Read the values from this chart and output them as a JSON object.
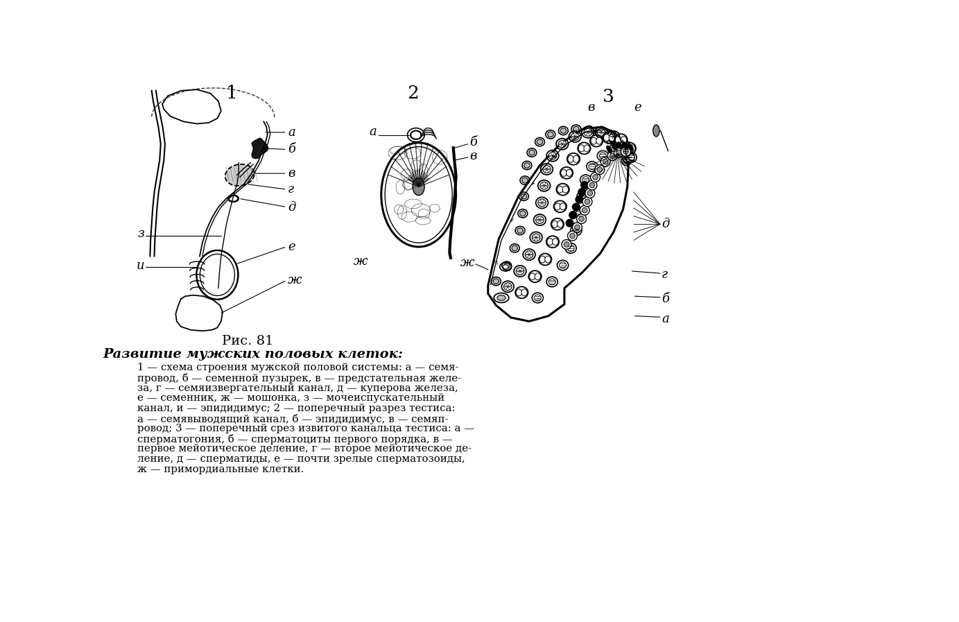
{
  "title": "Рис. 81",
  "caption_bold": "Развитие мужских половых клеток:",
  "bg_color": "#ffffff",
  "text_color": "#000000",
  "fig1_label": "1",
  "fig2_label": "2",
  "fig3_label": "3",
  "caption_lines": [
    "1 — схема строения мужской половой системы: а — семя-",
    "провод, б — семенной пузырек, в — предстательная желе-",
    "за, г — семяизвергательный канал, д — куперова железа,",
    "е — семенник, ж — мошонка, з — мочеиспускательный",
    "канал, и — эпидидимус; 2 — поперечный разрез тестиса:",
    "а — семявыводящий канал, б — эпидидимус, в — семяп-",
    "ровод; 3 — поперечный срез извитого канальца тестиса: а —",
    "сперматогония, б — сперматоциты первого порядка, в —",
    "первое мейотическое деление, г — второе мейотическое де-",
    "ление, д — сперматиды, е — почти зрелые сперматозоиды,",
    "ж — примордиальные клетки."
  ]
}
